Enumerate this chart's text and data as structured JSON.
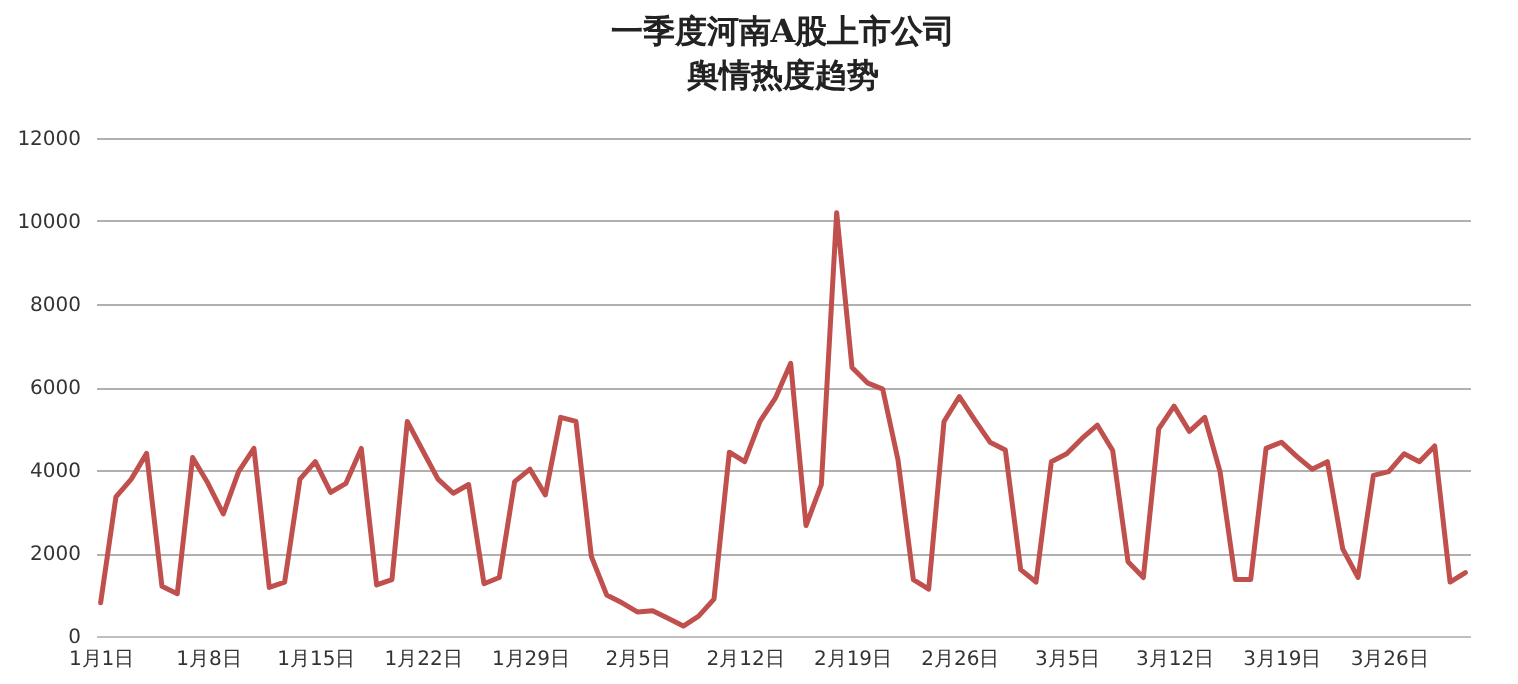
{
  "chart_data": {
    "type": "line",
    "title": "一季度河南A股上市公司",
    "subtitle": "舆情热度趋势",
    "categories": [
      "1月1日",
      null,
      null,
      null,
      null,
      null,
      null,
      "1月8日",
      null,
      null,
      null,
      null,
      null,
      null,
      "1月15日",
      null,
      null,
      null,
      null,
      null,
      null,
      "1月22日",
      null,
      null,
      null,
      null,
      null,
      null,
      "1月29日",
      null,
      null,
      null,
      null,
      null,
      null,
      "2月5日",
      null,
      null,
      null,
      null,
      null,
      null,
      "2月12日",
      null,
      null,
      null,
      null,
      null,
      null,
      "2月19日",
      null,
      null,
      null,
      null,
      null,
      null,
      "2月26日",
      null,
      null,
      null,
      null,
      null,
      null,
      "3月5日",
      null,
      null,
      null,
      null,
      null,
      null,
      "3月12日",
      null,
      null,
      null,
      null,
      null,
      null,
      "3月19日",
      null,
      null,
      null,
      null,
      null,
      null,
      "3月26日",
      null,
      null,
      null,
      null,
      null
    ],
    "series": [
      {
        "color": "#c0504d",
        "values": [
          800,
          3350,
          3780,
          4400,
          1200,
          1020,
          4300,
          3680,
          2940,
          3960,
          4520,
          1170,
          1300,
          3780,
          4200,
          3460,
          3680,
          4520,
          1230,
          1360,
          5170,
          4470,
          3780,
          3440,
          3650,
          1260,
          1410,
          3720,
          4020,
          3400,
          5270,
          5170,
          1920,
          990,
          800,
          580,
          610,
          430,
          240,
          480,
          890,
          4430,
          4200,
          5170,
          5730,
          6570,
          2660,
          3650,
          10200,
          6470,
          6100,
          5950,
          4240,
          1360,
          1130,
          5170,
          5770,
          5210,
          4670,
          4480,
          1600,
          1300,
          4200,
          4390,
          4760,
          5080,
          4470,
          1790,
          1410,
          4990,
          5540,
          4930,
          5270,
          3960,
          1360,
          1360,
          4520,
          4670,
          4330,
          4020,
          4200,
          2100,
          1410,
          3870,
          3960,
          4390,
          4200,
          4580,
          1300,
          1530
        ]
      }
    ],
    "ylim": [
      0,
      12000
    ],
    "yticks": [
      0,
      2000,
      4000,
      6000,
      8000,
      10000,
      12000
    ],
    "grid": "y",
    "marker": "none",
    "line_style": "solid"
  }
}
